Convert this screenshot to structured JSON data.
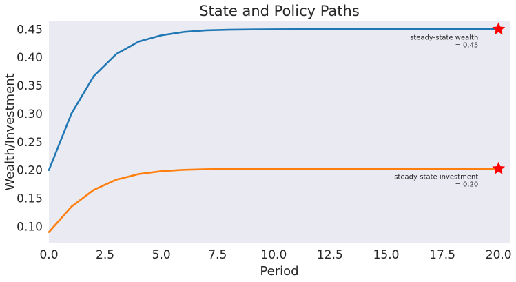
{
  "chart_data": {
    "type": "line",
    "title": "State and Policy Paths",
    "xlabel": "Period",
    "ylabel": "Wealth/Investment",
    "xlim": [
      0,
      20.5
    ],
    "ylim": [
      0.07,
      0.465
    ],
    "xticks": [
      0,
      2.5,
      5,
      7.5,
      10,
      12.5,
      15,
      17.5,
      20
    ],
    "xtick_labels": [
      "0.0",
      "2.5",
      "5.0",
      "7.5",
      "10.0",
      "12.5",
      "15.0",
      "17.5",
      "20.0"
    ],
    "yticks": [
      0.1,
      0.15,
      0.2,
      0.25,
      0.3,
      0.35,
      0.4,
      0.45
    ],
    "ytick_labels": [
      "0.10",
      "0.15",
      "0.20",
      "0.25",
      "0.30",
      "0.35",
      "0.40",
      "0.45"
    ],
    "grid": false,
    "background": "#eaeaf2",
    "x": [
      0,
      1,
      2,
      3,
      4,
      5,
      6,
      7,
      8,
      9,
      10,
      11,
      12,
      13,
      14,
      15,
      16,
      17,
      18,
      19,
      20
    ],
    "series": [
      {
        "color": "#1f77b4",
        "values": [
          0.2,
          0.3,
          0.367,
          0.406,
          0.428,
          0.439,
          0.445,
          0.448,
          0.449,
          0.4495,
          0.4498,
          0.4499,
          0.45,
          0.45,
          0.45,
          0.45,
          0.45,
          0.45,
          0.45,
          0.45,
          0.45
        ]
      },
      {
        "color": "#ff7f0e",
        "values": [
          0.09,
          0.135,
          0.165,
          0.183,
          0.193,
          0.198,
          0.2005,
          0.2015,
          0.202,
          0.2022,
          0.2023,
          0.2024,
          0.2024,
          0.2024,
          0.2024,
          0.2024,
          0.2024,
          0.2024,
          0.2024,
          0.2024,
          0.2024
        ]
      }
    ],
    "markers": [
      {
        "x": 20,
        "y": 0.45,
        "color": "#ff0000",
        "shape": "star"
      },
      {
        "x": 20,
        "y": 0.2024,
        "color": "#ff0000",
        "shape": "star"
      }
    ],
    "annotations": [
      {
        "lines": [
          "steady-state wealth",
          "= 0.45"
        ],
        "x": 19.1,
        "y": 0.45
      },
      {
        "lines": [
          "steady-state investment",
          "= 0.20"
        ],
        "x": 19.1,
        "y": 0.2024
      }
    ]
  }
}
